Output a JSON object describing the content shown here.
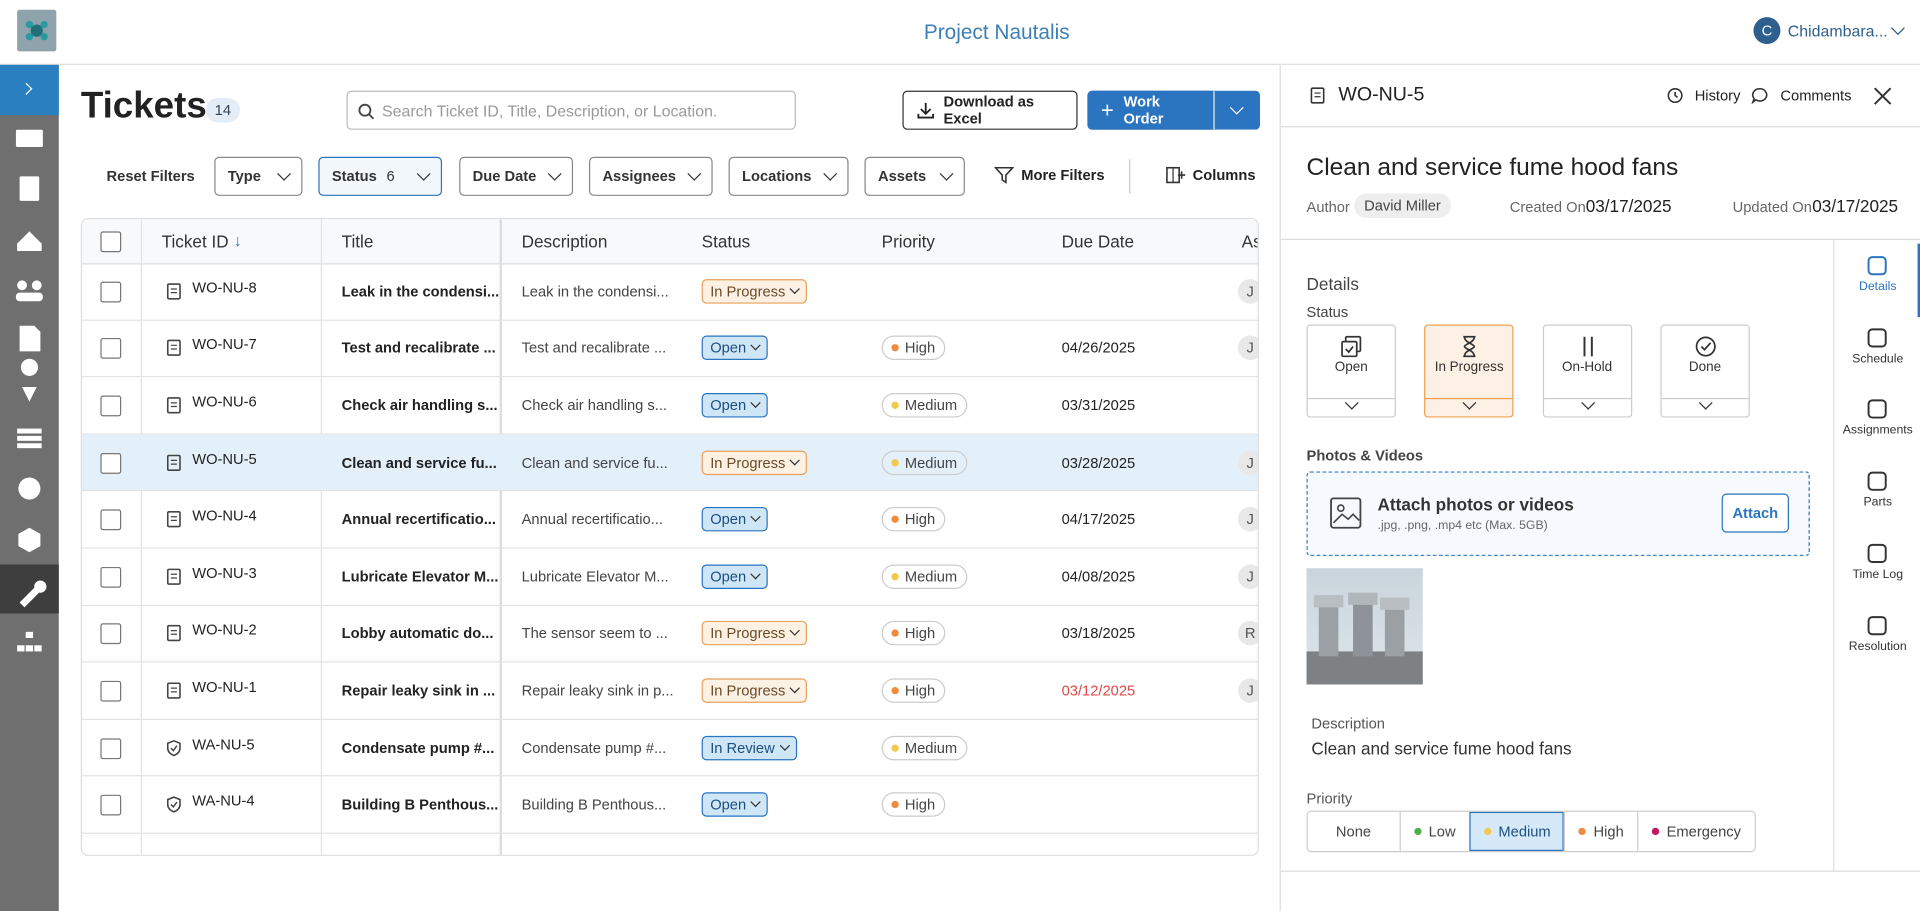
{
  "header": {
    "project": "Project Nautalis",
    "user_initial": "C",
    "user_name": "Chidambara..."
  },
  "page": {
    "title": "Tickets",
    "count": 14,
    "search_placeholder": "Search Ticket ID, Title, Description, or Location.",
    "download": "Download as Excel",
    "work_order": "Work Order"
  },
  "filters": {
    "reset": "Reset Filters",
    "items": [
      {
        "label": "Type"
      },
      {
        "label": "Status",
        "count": 6,
        "active": true
      },
      {
        "label": "Due Date"
      },
      {
        "label": "Assignees"
      },
      {
        "label": "Locations"
      },
      {
        "label": "Assets"
      }
    ],
    "more": "More Filters",
    "columns": "Columns"
  },
  "table": {
    "columns": [
      "Ticket ID",
      "Title",
      "Description",
      "Status",
      "Priority",
      "Due Date",
      "As"
    ],
    "rows": [
      {
        "id": "WO-NU-8",
        "title": "Leak in the condensi...",
        "description": "Leak in the condensi...",
        "status": "In Progress",
        "assignee": "J"
      },
      {
        "id": "WO-NU-7",
        "title": "Test and recalibrate ...",
        "description": "Test and recalibrate ...",
        "status": "Open",
        "priority": "High",
        "due_date": "04/26/2025",
        "assignee": "J"
      },
      {
        "id": "WO-NU-6",
        "title": "Check air handling s...",
        "description": "Check air handling s...",
        "status": "Open",
        "priority": "Medium",
        "due_date": "03/31/2025"
      },
      {
        "id": "WO-NU-5",
        "title": "Clean and service fu...",
        "description": "Clean and service fu...",
        "status": "In Progress",
        "priority": "Medium",
        "due_date": "03/28/2025",
        "assignee": "J",
        "selected": true
      },
      {
        "id": "WO-NU-4",
        "title": "Annual recertificatio...",
        "description": "Annual recertificatio...",
        "status": "Open",
        "priority": "High",
        "due_date": "04/17/2025",
        "assignee": "J"
      },
      {
        "id": "WO-NU-3",
        "title": "Lubricate Elevator M...",
        "description": "Lubricate Elevator M...",
        "status": "Open",
        "priority": "Medium",
        "due_date": "04/08/2025",
        "assignee": "J"
      },
      {
        "id": "WO-NU-2",
        "title": "Lobby automatic do...",
        "description": "The sensor seem to ...",
        "status": "In Progress",
        "priority": "High",
        "due_date": "03/18/2025",
        "assignee": "R"
      },
      {
        "id": "WO-NU-1",
        "title": "Repair leaky sink in ...",
        "description": "Repair leaky sink in p...",
        "status": "In Progress",
        "priority": "High",
        "due_date": "03/12/2025",
        "overdue": true,
        "assignee": "J"
      },
      {
        "id": "WA-NU-5",
        "title": "Condensate pump #...",
        "description": "Condensate pump #...",
        "status": "In Review",
        "priority": "Medium"
      },
      {
        "id": "WA-NU-4",
        "title": "Building B Penthous...",
        "description": "Building B Penthous...",
        "status": "Open",
        "priority": "High"
      }
    ]
  },
  "detail": {
    "id": "WO-NU-5",
    "history": "History",
    "comments": "Comments",
    "title": "Clean and service fume hood fans",
    "author_label": "Author",
    "author": "David Miller",
    "created_label": "Created On",
    "created": "03/17/2025",
    "updated_label": "Updated On",
    "updated": "03/17/2025",
    "section": "Details",
    "status_label": "Status",
    "status_options": [
      {
        "label": "Open"
      },
      {
        "label": "In Progress",
        "selected": true
      },
      {
        "label": "On-Hold"
      },
      {
        "label": "Done"
      }
    ],
    "photos_label": "Photos & Videos",
    "attach_title": "Attach photos or videos",
    "attach_hint": ".jpg, .png, .mp4 etc (Max. 5GB)",
    "attach_button": "Attach",
    "description_label": "Description",
    "description": "Clean and service fume hood fans",
    "priority_label": "Priority",
    "priority_options": [
      {
        "label": "None"
      },
      {
        "label": "Low",
        "color": "#4caf50"
      },
      {
        "label": "Medium",
        "color": "#f2c94c",
        "selected": true
      },
      {
        "label": "High",
        "color": "#f08a3c"
      },
      {
        "label": "Emergency",
        "color": "#c2185b"
      }
    ],
    "tabs": [
      {
        "label": "Details",
        "active": true
      },
      {
        "label": "Schedule"
      },
      {
        "label": "Assignments"
      },
      {
        "label": "Parts"
      },
      {
        "label": "Time Log"
      },
      {
        "label": "Resolution"
      }
    ]
  }
}
